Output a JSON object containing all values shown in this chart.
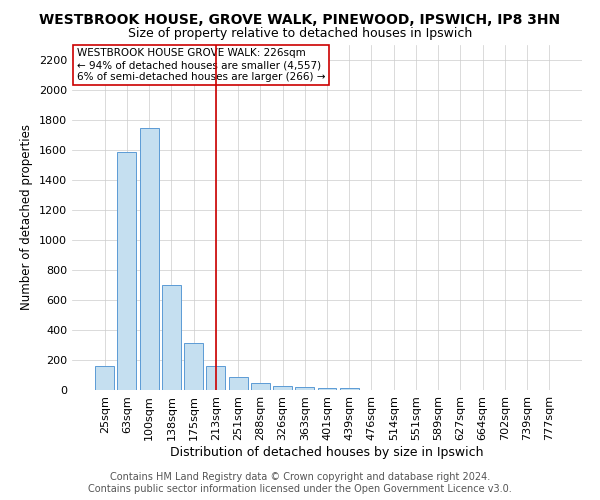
{
  "title": "WESTBROOK HOUSE, GROVE WALK, PINEWOOD, IPSWICH, IP8 3HN",
  "subtitle": "Size of property relative to detached houses in Ipswich",
  "xlabel": "Distribution of detached houses by size in Ipswich",
  "ylabel": "Number of detached properties",
  "categories": [
    "25sqm",
    "63sqm",
    "100sqm",
    "138sqm",
    "175sqm",
    "213sqm",
    "251sqm",
    "288sqm",
    "326sqm",
    "363sqm",
    "401sqm",
    "439sqm",
    "476sqm",
    "514sqm",
    "551sqm",
    "589sqm",
    "627sqm",
    "664sqm",
    "702sqm",
    "739sqm",
    "777sqm"
  ],
  "values": [
    160,
    1590,
    1750,
    700,
    315,
    160,
    90,
    50,
    30,
    20,
    15,
    15,
    0,
    0,
    0,
    0,
    0,
    0,
    0,
    0,
    0
  ],
  "bar_color": "#c5dff0",
  "bar_edge_color": "#5b9bd5",
  "highlight_index": 5,
  "highlight_color": "#cc0000",
  "annotation_line1": "WESTBROOK HOUSE GROVE WALK: 226sqm",
  "annotation_line2": "← 94% of detached houses are smaller (4,557)",
  "annotation_line3": "6% of semi-detached houses are larger (266) →",
  "annotation_box_color": "#ffffff",
  "annotation_border_color": "#cc0000",
  "ylim": [
    0,
    2300
  ],
  "yticks": [
    0,
    200,
    400,
    600,
    800,
    1000,
    1200,
    1400,
    1600,
    1800,
    2000,
    2200
  ],
  "footer_line1": "Contains HM Land Registry data © Crown copyright and database right 2024.",
  "footer_line2": "Contains public sector information licensed under the Open Government Licence v3.0.",
  "title_fontsize": 10,
  "subtitle_fontsize": 9,
  "xlabel_fontsize": 9,
  "ylabel_fontsize": 8.5,
  "tick_fontsize": 8,
  "annotation_fontsize": 7.5,
  "footer_fontsize": 7,
  "bg_color": "#ffffff",
  "grid_color": "#cccccc"
}
